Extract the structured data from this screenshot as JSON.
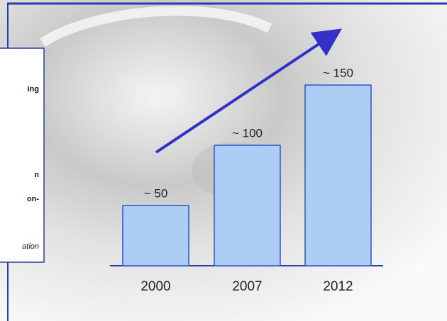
{
  "chart_data": {
    "type": "bar",
    "categories": [
      "2000",
      "2007",
      "2012"
    ],
    "values": [
      50,
      100,
      150
    ],
    "value_labels": [
      "~ 50",
      "~ 100",
      "~ 150"
    ],
    "color": "#aecdf5",
    "annotations": [
      "ing",
      "n",
      "on-",
      "ation"
    ]
  }
}
